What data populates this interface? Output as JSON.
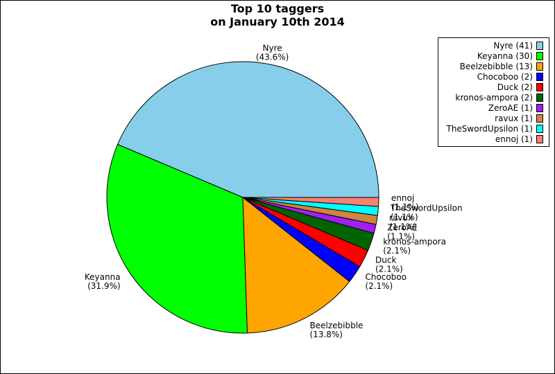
{
  "chart_data": {
    "type": "pie",
    "title": "Top 10 taggers",
    "subtitle": "on January 10th 2014",
    "slices": [
      {
        "name": "Nyre",
        "value": 41,
        "pct": "43.6%",
        "color": "#87ceeb"
      },
      {
        "name": "Keyanna",
        "value": 30,
        "pct": "31.9%",
        "color": "#00ff00"
      },
      {
        "name": "Beelzebibble",
        "value": 13,
        "pct": "13.8%",
        "color": "#ffa500"
      },
      {
        "name": "Chocoboo",
        "value": 2,
        "pct": "2.1%",
        "color": "#0000ff"
      },
      {
        "name": "Duck",
        "value": 2,
        "pct": "2.1%",
        "color": "#ff0000"
      },
      {
        "name": "kronos-ampora",
        "value": 2,
        "pct": "2.1%",
        "color": "#006400"
      },
      {
        "name": "ZeroAE",
        "value": 1,
        "pct": "1.1%",
        "color": "#a020f0"
      },
      {
        "name": "ravux",
        "value": 1,
        "pct": "1.1%",
        "color": "#cd853f"
      },
      {
        "name": "TheSwordUpsilon",
        "value": 1,
        "pct": "1.1%",
        "color": "#00ffff"
      },
      {
        "name": "ennoj",
        "value": 1,
        "pct": "1.1%",
        "color": "#fa8072"
      }
    ],
    "legend_placement": "top-right"
  }
}
